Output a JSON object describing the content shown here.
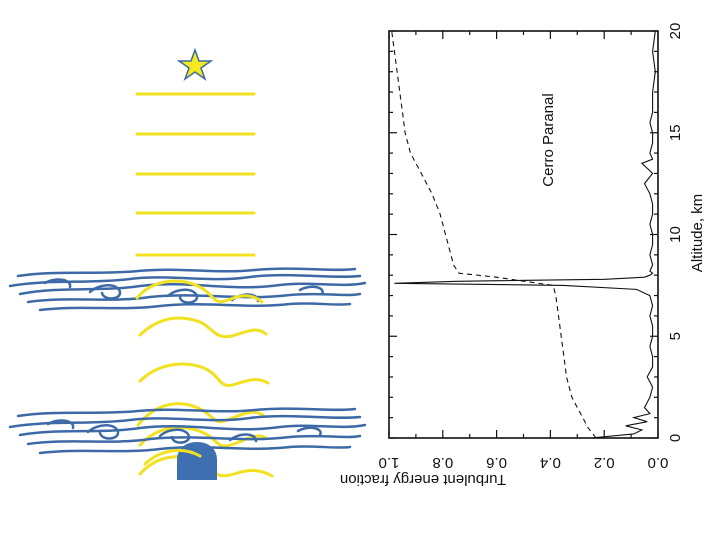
{
  "colors": {
    "wavefront": "#f2e11e",
    "turbulence": "#3d6aa6",
    "telescope": "#3e6fb0",
    "star": "#f5ea1e",
    "star_outline": "#3d6aa6"
  },
  "illustration": {
    "icons": [
      "star-icon",
      "telescope-icon"
    ],
    "flat_wavefront_count": 5,
    "turbulent_layer_count": 2
  },
  "chart_data": {
    "type": "line",
    "title": "Cerro Paranal",
    "xlabel": "Altitude, km",
    "ylabel": "Turbulent energy fraction",
    "xlim": [
      0,
      20
    ],
    "ylim": [
      0.0,
      1.0
    ],
    "xticks": [
      "0",
      "5",
      "10",
      "15",
      "20"
    ],
    "yticks": [
      "0.0",
      "0.2",
      "0.4",
      "0.6",
      "0.8",
      "1.0"
    ],
    "grid": false,
    "rotation": "plot rotated 90 degrees clockwise (altitude increases upward)",
    "series": [
      {
        "style": "solid",
        "x": [
          0.0,
          0.2,
          0.4,
          0.6,
          0.8,
          1.0,
          1.2,
          1.5,
          2.0,
          2.5,
          3.0,
          3.5,
          4.0,
          4.5,
          5.0,
          5.5,
          6.0,
          6.5,
          7.0,
          7.3,
          7.5,
          7.6,
          7.7,
          7.8,
          7.9,
          8.0,
          8.1,
          8.2,
          8.5,
          9.0,
          9.5,
          10.0,
          10.5,
          11.0,
          11.5,
          12.0,
          12.5,
          13.0,
          13.5,
          13.7,
          14.0,
          14.5,
          15.0,
          15.5,
          16.0,
          17.0,
          18.0,
          19.0,
          20.0
        ],
        "y": [
          0.25,
          0.09,
          0.06,
          0.12,
          0.04,
          0.09,
          0.03,
          0.05,
          0.03,
          0.02,
          0.04,
          0.02,
          0.02,
          0.03,
          0.02,
          0.02,
          0.03,
          0.02,
          0.03,
          0.08,
          0.35,
          0.98,
          0.75,
          0.2,
          0.05,
          0.03,
          0.02,
          0.03,
          0.02,
          0.03,
          0.02,
          0.02,
          0.03,
          0.02,
          0.02,
          0.03,
          0.05,
          0.02,
          0.06,
          0.02,
          0.03,
          0.02,
          0.02,
          0.03,
          0.02,
          0.02,
          0.01,
          0.02,
          0.01
        ]
      },
      {
        "style": "dashed",
        "x": [
          0.0,
          0.5,
          1.0,
          1.5,
          2.0,
          3.0,
          4.0,
          5.0,
          6.0,
          7.0,
          7.5,
          7.9,
          8.1,
          8.5,
          9.0,
          10.0,
          11.0,
          12.0,
          13.0,
          13.5,
          14.0,
          15.0,
          16.0,
          17.0,
          18.0,
          19.0,
          20.0
        ],
        "y": [
          0.23,
          0.26,
          0.28,
          0.3,
          0.32,
          0.34,
          0.35,
          0.36,
          0.37,
          0.38,
          0.39,
          0.6,
          0.74,
          0.76,
          0.77,
          0.79,
          0.81,
          0.84,
          0.88,
          0.9,
          0.92,
          0.94,
          0.95,
          0.96,
          0.97,
          0.98,
          0.99
        ]
      }
    ]
  }
}
